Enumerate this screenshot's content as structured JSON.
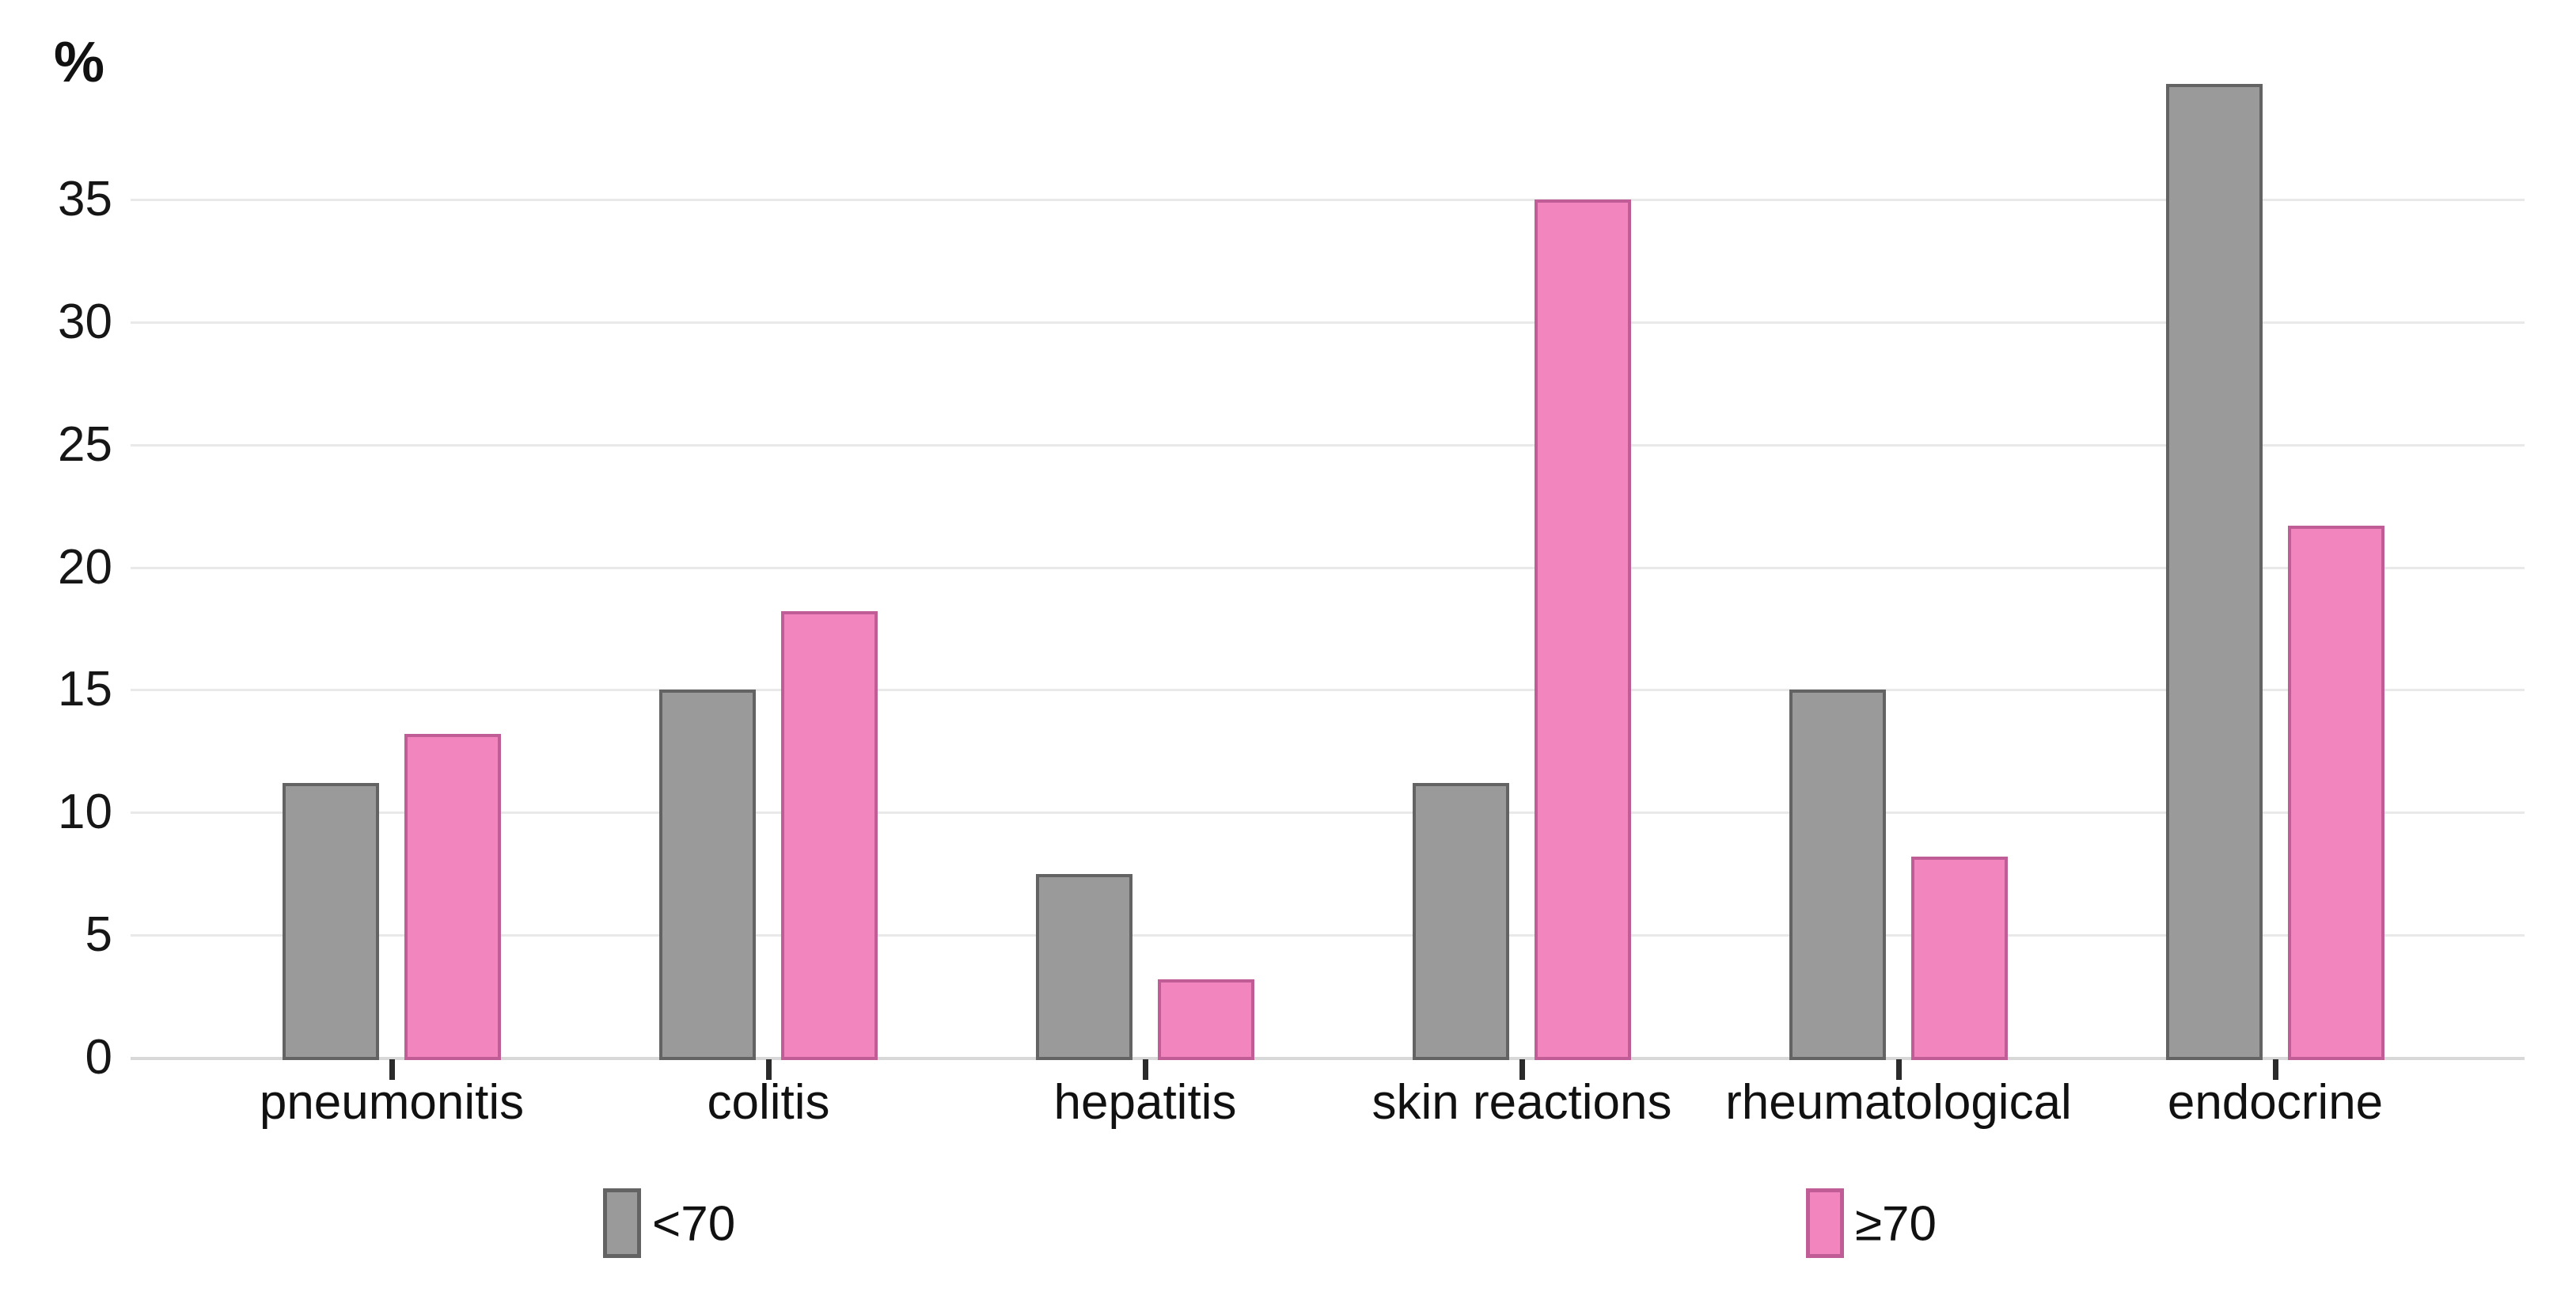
{
  "chart_data": {
    "type": "bar",
    "title": "",
    "ylabel": "%",
    "xlabel": "",
    "categories": [
      "pneumonitis",
      "colitis",
      "hepatitis",
      "skin reactions",
      "rheumatological",
      "endocrine"
    ],
    "series": [
      {
        "name": "<70",
        "fill": "#9a9a9a",
        "border": "#636363",
        "values": [
          11.2,
          15.0,
          7.5,
          11.2,
          15.0,
          39.7
        ]
      },
      {
        "name": "≥70",
        "fill": "#f284be",
        "border": "#c05d97",
        "values": [
          13.2,
          18.2,
          3.2,
          35.0,
          8.2,
          21.7
        ]
      }
    ],
    "yticks": [
      "0",
      "5",
      "10",
      "15",
      "20",
      "25",
      "30",
      "35"
    ],
    "ylim": [
      0,
      40
    ],
    "grid": true,
    "legend_position": "bottom"
  },
  "colors": {
    "background": "#ffffff",
    "gridline": "#e9e9e9",
    "axis_line": "#d8d8d8",
    "tick_mark": "#2b2b2b",
    "text": "#111111"
  }
}
